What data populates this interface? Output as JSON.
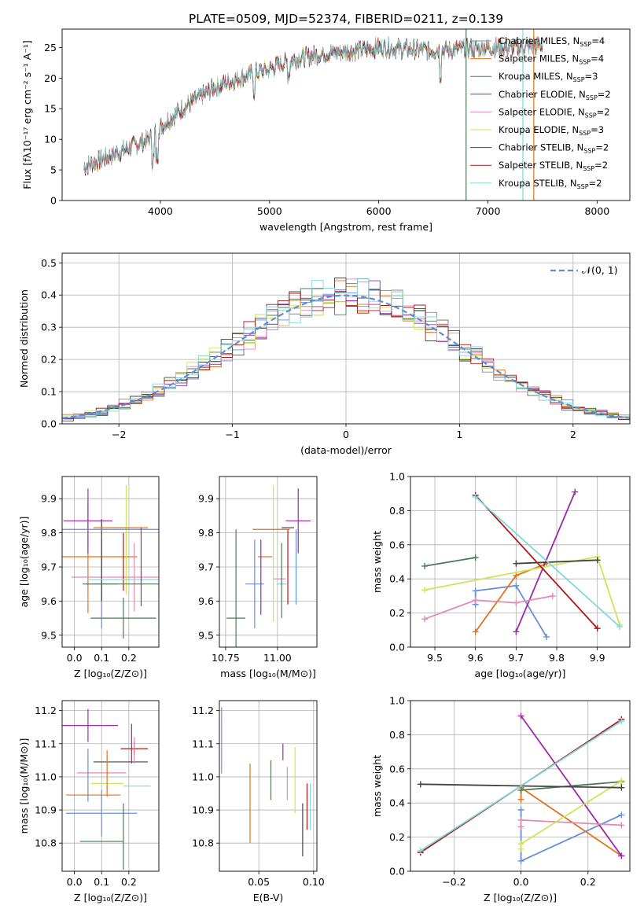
{
  "figure": {
    "title": "PLATE=0509, MJD=52374, FIBERID=0211, z=0.139"
  },
  "colors": [
    "#6a8fd6",
    "#e0731f",
    "#4e7a55",
    "#9a2aa8",
    "#e08ab5",
    "#cfe35a",
    "#444444",
    "#b01818",
    "#80d8dc"
  ],
  "chart_data": [
    {
      "id": "spectrum",
      "type": "line",
      "xlabel": "wavelength [Angstrom, rest frame]",
      "ylabel": "Flux [fλ10⁻¹⁷ erg cm⁻² s⁻¹ A⁻¹]",
      "xlim": [
        3100,
        8300
      ],
      "ylim": [
        0,
        28
      ],
      "xticks": [
        4000,
        5000,
        6000,
        7000,
        8000
      ],
      "yticks": [
        0,
        5,
        10,
        15,
        20,
        25
      ],
      "legend_position": "top-right",
      "series": [
        {
          "name": "Chabrier MILES, N",
          "sub": "SSP",
          "tail": "=4"
        },
        {
          "name": "Salpeter MILES, N",
          "sub": "SSP",
          "tail": "=4"
        },
        {
          "name": "Kroupa MILES, N",
          "sub": "SSP",
          "tail": "=3"
        },
        {
          "name": "Chabrier ELODIE, N",
          "sub": "SSP",
          "tail": "=2"
        },
        {
          "name": "Salpeter ELODIE, N",
          "sub": "SSP",
          "tail": "=2"
        },
        {
          "name": "Kroupa ELODIE, N",
          "sub": "SSP",
          "tail": "=3"
        },
        {
          "name": "Chabrier STELIB, N",
          "sub": "SSP",
          "tail": "=2"
        },
        {
          "name": "Salpeter STELIB, N",
          "sub": "SSP",
          "tail": "=2"
        },
        {
          "name": "Kroupa STELIB, N",
          "sub": "SSP",
          "tail": "=2"
        }
      ],
      "continuum": {
        "x": [
          3300,
          3500,
          3700,
          3900,
          4000,
          4200,
          4500,
          4800,
          5000,
          5200,
          5500,
          5800,
          6000,
          6500,
          7000,
          7300,
          7500
        ],
        "y": [
          5.5,
          7.0,
          8.5,
          10.0,
          12.0,
          15.0,
          18.5,
          20.5,
          21.5,
          23.0,
          24.0,
          24.5,
          25.0,
          24.5,
          25.0,
          25.0,
          25.5
        ]
      }
    },
    {
      "id": "residuals",
      "type": "step",
      "xlabel": "(data-model)/error",
      "ylabel": "Normed distribution",
      "xlim": [
        -2.5,
        2.5
      ],
      "ylim": [
        0,
        0.53
      ],
      "xticks": [
        -2,
        -1,
        0,
        1,
        2
      ],
      "xtick_labels": [
        "−2",
        "−1",
        "0",
        "1",
        "2"
      ],
      "yticks": [
        0.0,
        0.1,
        0.2,
        0.3,
        0.4,
        0.5
      ],
      "ytick_labels": [
        "0.0",
        "0.1",
        "0.2",
        "0.3",
        "0.4",
        "0.5"
      ],
      "bin_width": 0.1,
      "reference": {
        "name": "𝒩(0, 1)",
        "mu": 0,
        "sigma": 1
      }
    },
    {
      "id": "age-vs-Z",
      "type": "errorbar",
      "xlabel": "Z [log₁₀(Z/Z⊙)]",
      "ylabel": "age  [log₁₀(age/yr)]",
      "xlim": [
        -0.045,
        0.31
      ],
      "ylim": [
        9.465,
        9.965
      ],
      "xticks": [
        0.0,
        0.1,
        0.2
      ],
      "xtick_labels": [
        "0.0",
        "0.1",
        "0.2"
      ],
      "yticks": [
        9.5,
        9.6,
        9.7,
        9.8,
        9.9
      ],
      "ytick_labels": [
        "9.5",
        "9.6",
        "9.7",
        "9.8",
        "9.9"
      ],
      "points": [
        {
          "x": 0.1,
          "xerr": 0.06,
          "y": 9.65,
          "yerr": 0.13
        },
        {
          "x": 0.05,
          "xerr": 0.18,
          "y": 9.73,
          "yerr": 0.165
        },
        {
          "x": 0.18,
          "xerr": 0.12,
          "y": 9.55,
          "yerr": 0.06
        },
        {
          "x": 0.05,
          "xerr": 0.09,
          "y": 9.835,
          "yerr": 0.095
        },
        {
          "x": 0.22,
          "xerr": 0.23,
          "y": 9.67,
          "yerr": 0.1
        },
        {
          "x": 0.19,
          "xerr": 0.0,
          "y": 9.78,
          "yerr": 0.16
        },
        {
          "x": 0.1,
          "xerr": 0.0,
          "y": 9.72,
          "yerr": 0.12
        },
        {
          "x": 0.18,
          "xerr": 0.0,
          "y": 9.715,
          "yerr": 0.085
        },
        {
          "x": 0.2,
          "xerr": 0.15,
          "y": 9.663,
          "yerr": 0.0
        },
        {
          "x": 0.125,
          "xerr": 0.2,
          "y": 9.81,
          "yerr": 0.0
        },
        {
          "x": 0.17,
          "xerr": 0.1,
          "y": 9.815,
          "yerr": 0.0
        },
        {
          "x": 0.18,
          "xerr": 0.15,
          "y": 9.65,
          "yerr": 0.0
        },
        {
          "x": 0.245,
          "xerr": 0.0,
          "y": 9.7,
          "yerr": 0.115
        }
      ]
    },
    {
      "id": "age-vs-mass",
      "type": "errorbar",
      "xlabel": "mass [log₁₀(M/M⊙)]",
      "ylabel": "",
      "xlim": [
        10.72,
        11.19
      ],
      "ylim": [
        9.465,
        9.965
      ],
      "xticks": [
        10.75,
        11.0
      ],
      "xtick_labels": [
        "10.75",
        "11.00"
      ],
      "yticks": [
        9.5,
        9.6,
        9.7,
        9.8,
        9.9
      ],
      "ytick_labels": [
        "9.5",
        "9.6",
        "9.7",
        "9.8",
        "9.9"
      ],
      "points": [
        {
          "x": 10.89,
          "xerr": 0.045,
          "y": 9.65,
          "yerr": 0.13
        },
        {
          "x": 10.94,
          "xerr": 0.035,
          "y": 9.73,
          "yerr": 0.0
        },
        {
          "x": 10.8,
          "xerr": 0.045,
          "y": 9.55,
          "yerr": 0.26
        },
        {
          "x": 11.1,
          "xerr": 0.06,
          "y": 9.835,
          "yerr": 0.095
        },
        {
          "x": 11.01,
          "xerr": 0.03,
          "y": 9.665,
          "yerr": 0.0
        },
        {
          "x": 10.98,
          "xerr": 0.0,
          "y": 9.74,
          "yerr": 0.2
        },
        {
          "x": 11.05,
          "xerr": 0.03,
          "y": 9.815,
          "yerr": 0.0
        },
        {
          "x": 11.05,
          "xerr": 0.0,
          "y": 9.7,
          "yerr": 0.11
        },
        {
          "x": 11.02,
          "xerr": 0.025,
          "y": 9.65,
          "yerr": 0.0
        },
        {
          "x": 11.09,
          "xerr": 0.0,
          "y": 9.7,
          "yerr": 0.11
        },
        {
          "x": 10.97,
          "xerr": 0.09,
          "y": 9.81,
          "yerr": 0.0
        },
        {
          "x": 11.02,
          "xerr": 0.0,
          "y": 9.66,
          "yerr": 0.11
        },
        {
          "x": 10.92,
          "xerr": 0.0,
          "y": 9.67,
          "yerr": 0.11
        }
      ]
    },
    {
      "id": "weight-vs-age",
      "type": "line",
      "xlabel": "age  [log₁₀(age/yr)]",
      "ylabel": "mass weight",
      "xlim": [
        9.44,
        9.98
      ],
      "ylim": [
        0,
        1.0
      ],
      "xticks": [
        9.5,
        9.6,
        9.7,
        9.8,
        9.9
      ],
      "xtick_labels": [
        "9.5",
        "9.6",
        "9.7",
        "9.8",
        "9.9"
      ],
      "yticks": [
        0.0,
        0.2,
        0.4,
        0.6,
        0.8,
        1.0
      ],
      "ytick_labels": [
        "0.0",
        "0.2",
        "0.4",
        "0.6",
        "0.8",
        "1.0"
      ],
      "series": [
        {
          "x": [
            9.6,
            9.6,
            9.7,
            9.775
          ],
          "y": [
            0.25,
            0.33,
            0.36,
            0.06
          ]
        },
        {
          "x": [
            9.6,
            9.7,
            9.775
          ],
          "y": [
            0.09,
            0.42,
            0.49
          ]
        },
        {
          "x": [
            9.475,
            9.6
          ],
          "y": [
            0.475,
            0.525
          ]
        },
        {
          "x": [
            9.7,
            9.845
          ],
          "y": [
            0.09,
            0.91
          ]
        },
        {
          "x": [
            9.475,
            9.6,
            9.7,
            9.79
          ],
          "y": [
            0.165,
            0.275,
            0.26,
            0.3
          ]
        },
        {
          "x": [
            9.475,
            9.9,
            9.955
          ],
          "y": [
            0.335,
            0.53,
            0.13
          ]
        },
        {
          "x": [
            9.7,
            9.9
          ],
          "y": [
            0.49,
            0.51
          ]
        },
        {
          "x": [
            9.6,
            9.9
          ],
          "y": [
            0.89,
            0.11
          ]
        },
        {
          "x": [
            9.6,
            9.955
          ],
          "y": [
            0.88,
            0.12
          ]
        }
      ]
    },
    {
      "id": "mass-vs-Z",
      "type": "errorbar",
      "xlabel": "Z [log₁₀(Z/Z⊙)]",
      "ylabel": "mass [log₁₀(M/M⊙)]",
      "xlim": [
        -0.045,
        0.31
      ],
      "ylim": [
        10.715,
        11.23
      ],
      "xticks": [
        0.0,
        0.1,
        0.2
      ],
      "xtick_labels": [
        "0.0",
        "0.1",
        "0.2"
      ],
      "yticks": [
        10.8,
        10.9,
        11.0,
        11.1,
        11.2
      ],
      "ytick_labels": [
        "10.8",
        "10.9",
        "11.0",
        "11.1",
        "11.2"
      ],
      "points": [
        {
          "x": 0.1,
          "xerr": 0.13,
          "y": 10.89,
          "yerr": 0.07
        },
        {
          "x": 0.07,
          "xerr": 0.1,
          "y": 10.945,
          "yerr": 0.0
        },
        {
          "x": 0.1,
          "xerr": 0.08,
          "y": 10.805,
          "yerr": 0.0
        },
        {
          "x": 0.05,
          "xerr": 0.11,
          "y": 11.155,
          "yerr": 0.05
        },
        {
          "x": 0.1,
          "xerr": 0.09,
          "y": 11.012,
          "yerr": 0.0
        },
        {
          "x": 0.12,
          "xerr": 0.06,
          "y": 10.98,
          "yerr": 0.0
        },
        {
          "x": 0.17,
          "xerr": 0.1,
          "y": 11.045,
          "yerr": 0.0
        },
        {
          "x": 0.22,
          "xerr": 0.05,
          "y": 11.085,
          "yerr": 0.02
        },
        {
          "x": 0.23,
          "xerr": 0.05,
          "y": 10.972,
          "yerr": 0.0
        },
        {
          "x": 0.05,
          "xerr": 0.0,
          "y": 11.005,
          "yerr": 0.08
        },
        {
          "x": 0.12,
          "xerr": 0.0,
          "y": 11.01,
          "yerr": 0.07
        },
        {
          "x": 0.18,
          "xerr": 0.0,
          "y": 10.82,
          "yerr": 0.1
        },
        {
          "x": 0.21,
          "xerr": 0.0,
          "y": 11.1,
          "yerr": 0.06
        },
        {
          "x": 0.22,
          "xerr": 0.0,
          "y": 11.08,
          "yerr": 0.04
        }
      ]
    },
    {
      "id": "mass-vs-EBV",
      "type": "errorbar",
      "xlabel": "E(B-V)",
      "ylabel": "",
      "xlim": [
        0.014,
        0.103
      ],
      "ylim": [
        10.715,
        11.23
      ],
      "xticks": [
        0.05,
        0.1
      ],
      "xtick_labels": [
        "0.05",
        "0.10"
      ],
      "yticks": [
        10.8,
        10.9,
        11.0,
        11.1,
        11.2
      ],
      "ytick_labels": [
        "10.8",
        "10.9",
        "11.0",
        "11.1",
        "11.2"
      ],
      "points": [
        {
          "x": 0.016,
          "xerr": 0.0,
          "y": 11.11,
          "yerr": 0.1
        },
        {
          "x": 0.042,
          "xerr": 0.0,
          "y": 10.92,
          "yerr": 0.12
        },
        {
          "x": 0.061,
          "xerr": 0.0,
          "y": 10.99,
          "yerr": 0.06
        },
        {
          "x": 0.072,
          "xerr": 0.0,
          "y": 11.075,
          "yerr": 0.025
        },
        {
          "x": 0.076,
          "xerr": 0.0,
          "y": 10.98,
          "yerr": 0.05
        },
        {
          "x": 0.083,
          "xerr": 0.0,
          "y": 10.99,
          "yerr": 0.1
        },
        {
          "x": 0.09,
          "xerr": 0.0,
          "y": 10.84,
          "yerr": 0.08
        },
        {
          "x": 0.094,
          "xerr": 0.0,
          "y": 10.91,
          "yerr": 0.07
        },
        {
          "x": 0.097,
          "xerr": 0.0,
          "y": 10.91,
          "yerr": 0.07
        }
      ]
    },
    {
      "id": "weight-vs-Z",
      "type": "line",
      "xlabel": "Z [log₁₀(Z/Z⊙)]",
      "ylabel": "mass weight",
      "xlim": [
        -0.33,
        0.325
      ],
      "ylim": [
        0,
        1.0
      ],
      "xticks": [
        -0.2,
        0.0,
        0.2
      ],
      "xtick_labels": [
        "−0.2",
        "0.0",
        "0.2"
      ],
      "yticks": [
        0.0,
        0.2,
        0.4,
        0.6,
        0.8,
        1.0
      ],
      "ytick_labels": [
        "0.0",
        "0.2",
        "0.4",
        "0.6",
        "0.8",
        "1.0"
      ],
      "series": [
        {
          "x": [
            0.0,
            0.0,
            0.3
          ],
          "y": [
            0.36,
            0.06,
            0.33
          ]
        },
        {
          "x": [
            0.0,
            0.0,
            0.3
          ],
          "y": [
            0.42,
            0.49,
            0.09
          ]
        },
        {
          "x": [
            0.0,
            0.3
          ],
          "y": [
            0.475,
            0.525
          ]
        },
        {
          "x": [
            0.0,
            0.3
          ],
          "y": [
            0.91,
            0.09
          ]
        },
        {
          "x": [
            0.0,
            0.0,
            0.3
          ],
          "y": [
            0.26,
            0.3,
            0.27
          ]
        },
        {
          "x": [
            0.0,
            0.0,
            0.3
          ],
          "y": [
            0.13,
            0.16,
            0.53
          ]
        },
        {
          "x": [
            -0.3,
            0.3
          ],
          "y": [
            0.51,
            0.49
          ]
        },
        {
          "x": [
            -0.3,
            0.3
          ],
          "y": [
            0.11,
            0.89
          ]
        },
        {
          "x": [
            -0.3,
            0.3
          ],
          "y": [
            0.12,
            0.88
          ]
        }
      ]
    }
  ]
}
